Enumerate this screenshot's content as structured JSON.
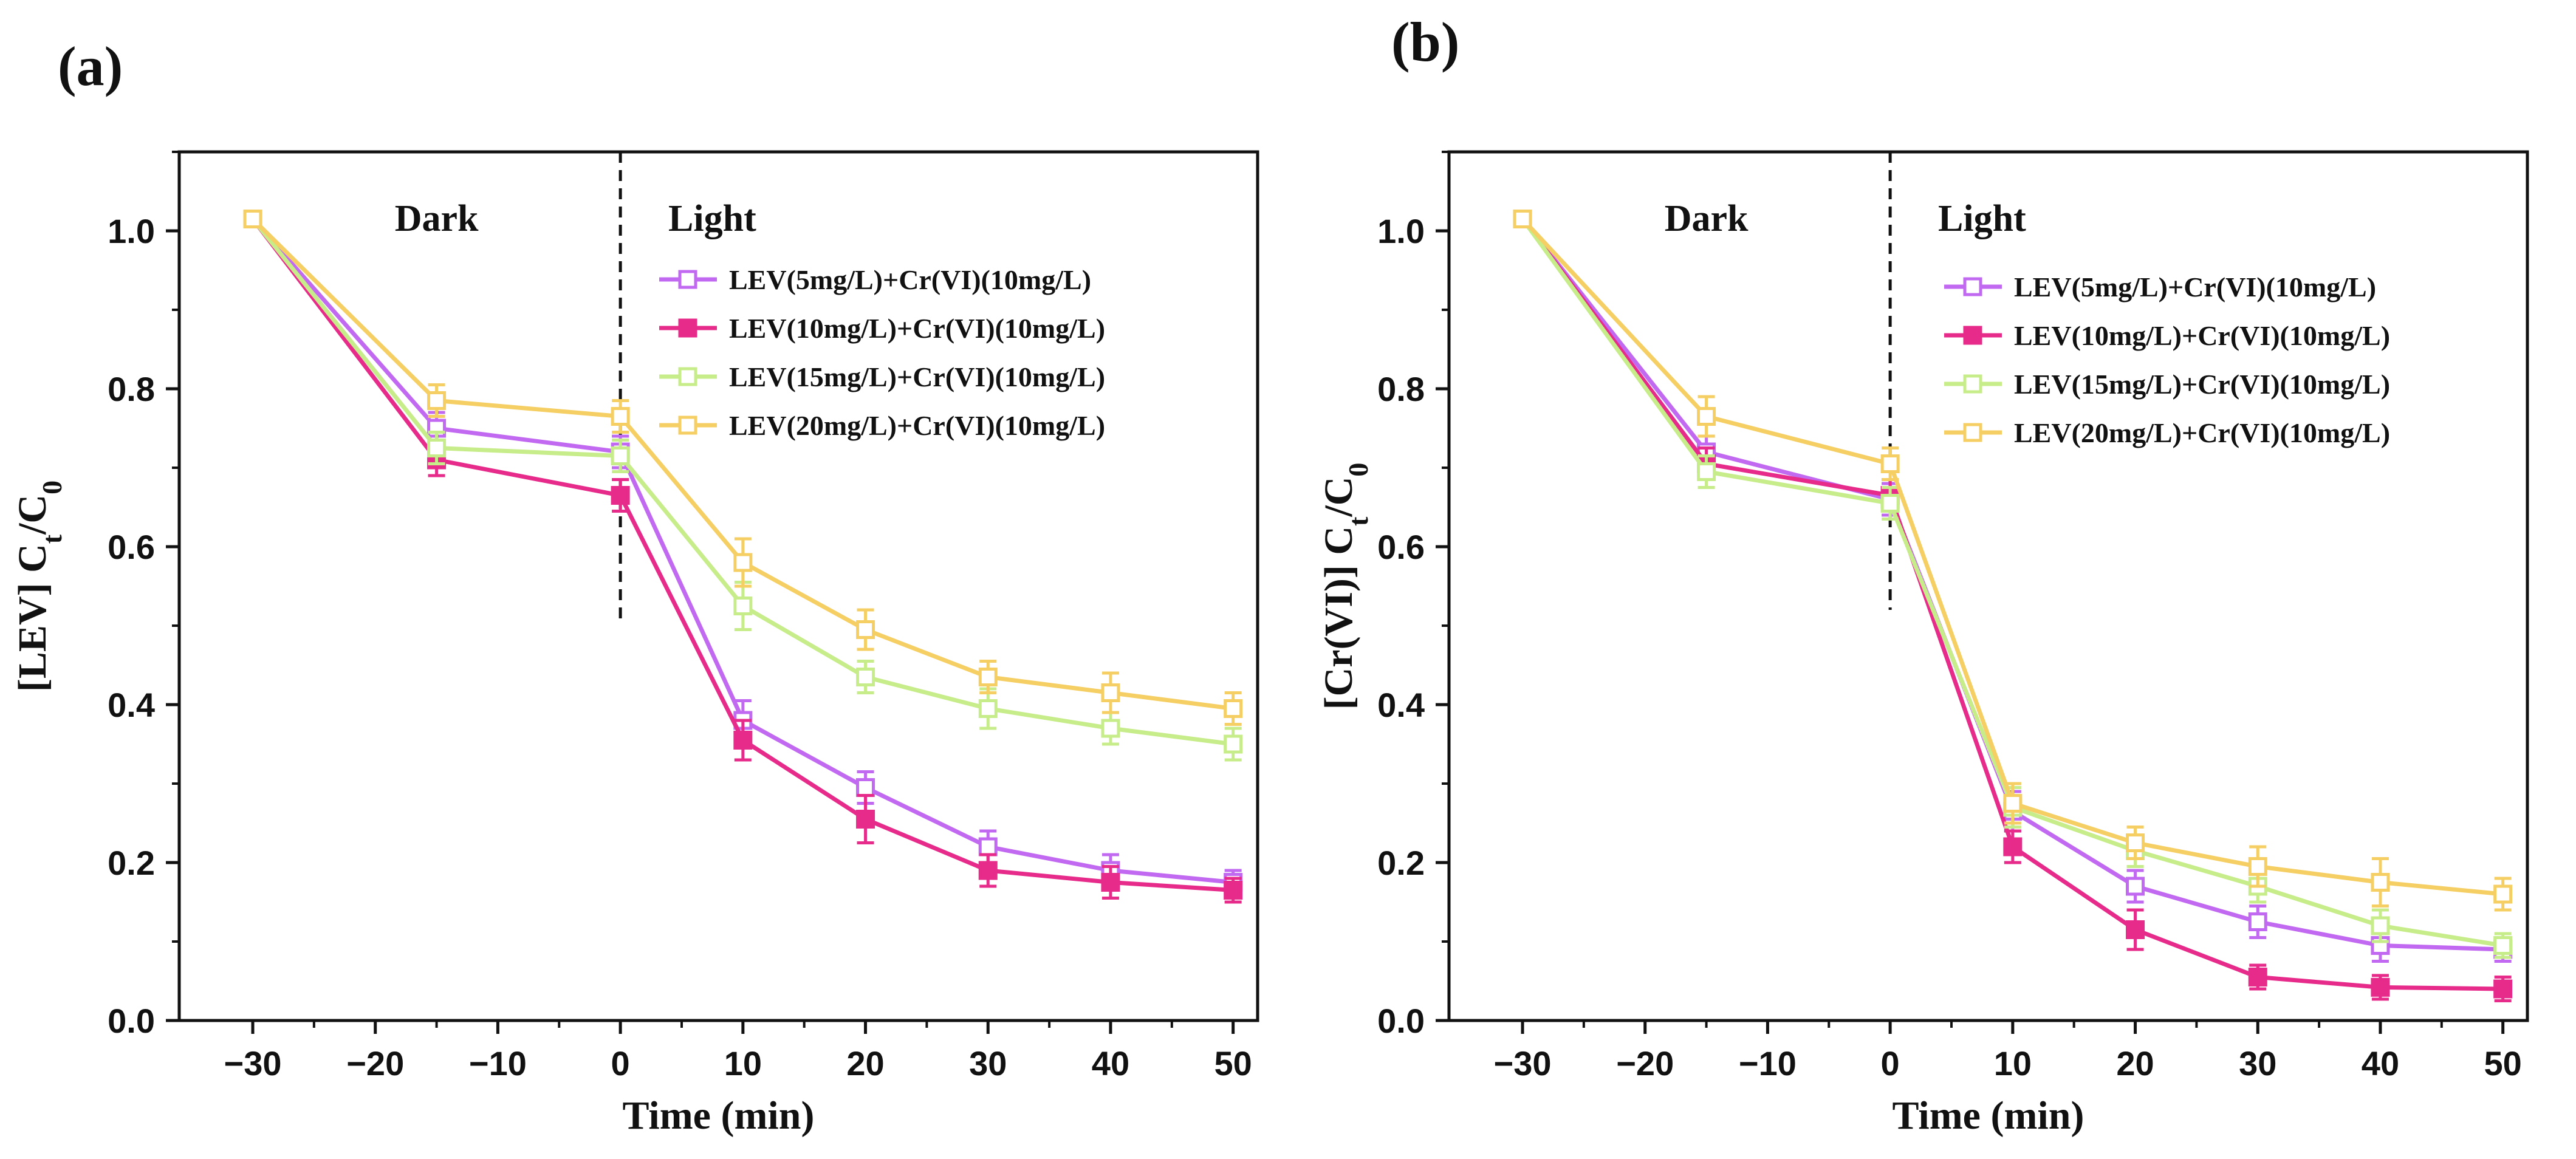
{
  "chart_data": [
    {
      "panel_label": "(a)",
      "type": "line",
      "xlabel": "Time (min)",
      "ylabel": "[LEV] C",
      "ylabel_sub1": "t",
      "ylabel_mid": "/C",
      "ylabel_sub2": "0",
      "x": [
        -30,
        -15,
        0,
        10,
        20,
        30,
        40,
        50
      ],
      "xlim": [
        -36,
        52
      ],
      "ylim": [
        0.0,
        1.1
      ],
      "xticks": [
        -30,
        -20,
        -10,
        0,
        10,
        20,
        30,
        40,
        50
      ],
      "xtick_labels": [
        "−30",
        "−20",
        "−10",
        "0",
        "10",
        "20",
        "30",
        "40",
        "50"
      ],
      "yticks": [
        0.0,
        0.2,
        0.4,
        0.6,
        0.8,
        1.0
      ],
      "ytick_labels": [
        "0.0",
        "0.2",
        "0.4",
        "0.6",
        "0.8",
        "1.0"
      ],
      "divider_x": 0,
      "divider_y_range": [
        0.5,
        1.1
      ],
      "dark_label": "Dark",
      "light_label": "Light",
      "legend_position": "upper-right",
      "series": [
        {
          "name": "LEV(5mg/L)+Cr(VI)(10mg/L)",
          "color": "#c169f0",
          "filled": false,
          "values": [
            1.015,
            0.75,
            0.72,
            0.38,
            0.295,
            0.22,
            0.19,
            0.175
          ],
          "errors": [
            0.008,
            0.02,
            0.02,
            0.025,
            0.02,
            0.02,
            0.02,
            0.015
          ]
        },
        {
          "name": "LEV(10mg/L)+Cr(VI)(10mg/L)",
          "color": "#e62b8b",
          "filled": true,
          "values": [
            1.015,
            0.71,
            0.665,
            0.355,
            0.255,
            0.19,
            0.175,
            0.165
          ],
          "errors": [
            0.008,
            0.02,
            0.02,
            0.025,
            0.03,
            0.02,
            0.02,
            0.015
          ]
        },
        {
          "name": "LEV(15mg/L)+Cr(VI)(10mg/L)",
          "color": "#c7ec8a",
          "filled": false,
          "values": [
            1.015,
            0.725,
            0.715,
            0.525,
            0.435,
            0.395,
            0.37,
            0.35
          ],
          "errors": [
            0.008,
            0.02,
            0.02,
            0.03,
            0.02,
            0.025,
            0.02,
            0.02
          ]
        },
        {
          "name": "LEV(20mg/L)+Cr(VI)(10mg/L)",
          "color": "#f5cf63",
          "filled": false,
          "values": [
            1.015,
            0.785,
            0.765,
            0.58,
            0.495,
            0.435,
            0.415,
            0.395
          ],
          "errors": [
            0.008,
            0.02,
            0.02,
            0.03,
            0.025,
            0.02,
            0.025,
            0.02
          ]
        }
      ]
    },
    {
      "panel_label": "(b)",
      "type": "line",
      "xlabel": "Time (min)",
      "ylabel": "[Cr(VI)] C",
      "ylabel_sub1": "t",
      "ylabel_mid": "/C",
      "ylabel_sub2": "0",
      "x": [
        -30,
        -15,
        0,
        10,
        20,
        30,
        40,
        50
      ],
      "xlim": [
        -36,
        52
      ],
      "ylim": [
        0.0,
        1.1
      ],
      "xticks": [
        -30,
        -20,
        -10,
        0,
        10,
        20,
        30,
        40,
        50
      ],
      "xtick_labels": [
        "−30",
        "−20",
        "−10",
        "0",
        "10",
        "20",
        "30",
        "40",
        "50"
      ],
      "yticks": [
        0.0,
        0.2,
        0.4,
        0.6,
        0.8,
        1.0
      ],
      "ytick_labels": [
        "0.0",
        "0.2",
        "0.4",
        "0.6",
        "0.8",
        "1.0"
      ],
      "divider_x": 0,
      "divider_y_range": [
        0.52,
        1.1
      ],
      "dark_label": "Dark",
      "light_label": "Light",
      "legend_position": "upper-right",
      "series": [
        {
          "name": "LEV(5mg/L)+Cr(VI)(10mg/L)",
          "color": "#c169f0",
          "filled": false,
          "values": [
            1.015,
            0.72,
            0.66,
            0.265,
            0.17,
            0.125,
            0.095,
            0.09
          ],
          "errors": [
            0.008,
            0.02,
            0.02,
            0.025,
            0.02,
            0.02,
            0.02,
            0.015
          ]
        },
        {
          "name": "LEV(10mg/L)+Cr(VI)(10mg/L)",
          "color": "#e62b8b",
          "filled": true,
          "values": [
            1.015,
            0.705,
            0.665,
            0.22,
            0.115,
            0.055,
            0.042,
            0.04
          ],
          "errors": [
            0.008,
            0.02,
            0.02,
            0.02,
            0.025,
            0.015,
            0.015,
            0.015
          ]
        },
        {
          "name": "LEV(15mg/L)+Cr(VI)(10mg/L)",
          "color": "#c7ec8a",
          "filled": false,
          "values": [
            1.015,
            0.695,
            0.655,
            0.27,
            0.215,
            0.17,
            0.12,
            0.095
          ],
          "errors": [
            0.008,
            0.02,
            0.02,
            0.025,
            0.02,
            0.02,
            0.02,
            0.015
          ]
        },
        {
          "name": "LEV(20mg/L)+Cr(VI)(10mg/L)",
          "color": "#f5cf63",
          "filled": false,
          "values": [
            1.015,
            0.765,
            0.705,
            0.275,
            0.225,
            0.195,
            0.175,
            0.16
          ],
          "errors": [
            0.008,
            0.025,
            0.02,
            0.025,
            0.02,
            0.025,
            0.03,
            0.02
          ]
        }
      ]
    }
  ]
}
